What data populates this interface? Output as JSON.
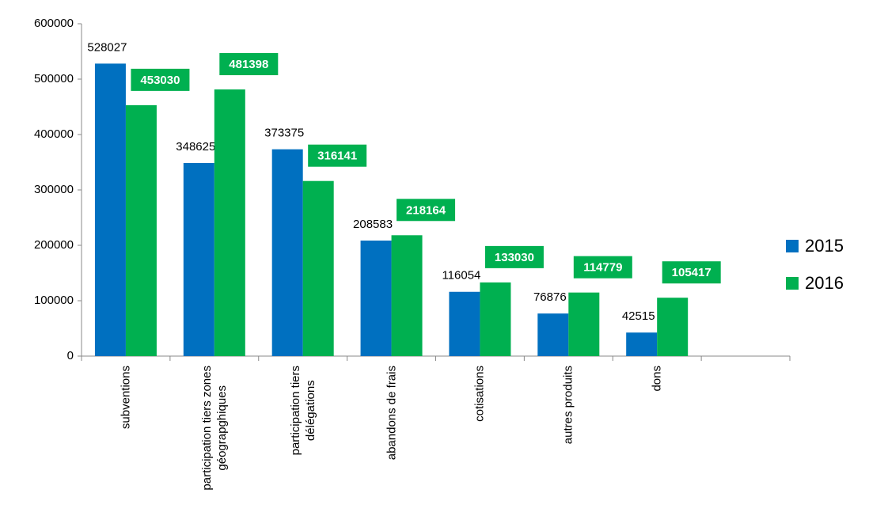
{
  "chart_data": {
    "type": "bar",
    "categories": [
      "subventions",
      "participation tiers zones\ngéograpghiques",
      "participation tiers\ndélégations",
      "abandons de frais",
      "cotisations",
      "autres produits",
      "dons",
      null
    ],
    "series": [
      {
        "name": "2015",
        "color": "#0070c0",
        "values": [
          528027,
          348625,
          373375,
          208583,
          116054,
          76876,
          42515,
          null
        ]
      },
      {
        "name": "2016",
        "color": "#00b050",
        "values": [
          453030,
          481398,
          316141,
          218164,
          133030,
          114779,
          105417,
          null
        ]
      }
    ],
    "ylim": [
      0,
      600000
    ],
    "yticks": [
      0,
      100000,
      200000,
      300000,
      400000,
      500000,
      600000
    ],
    "legend": "right"
  }
}
